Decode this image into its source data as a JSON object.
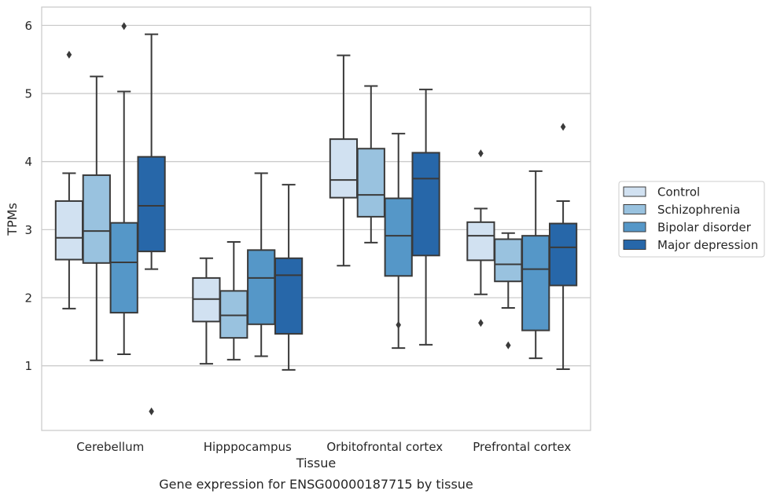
{
  "chart_data": {
    "type": "box",
    "caption": "Gene expression for ENSG00000187715 by tissue",
    "xlabel": "Tissue",
    "ylabel": "TPMs",
    "ylim": [
      0.05,
      6.27
    ],
    "yticks": [
      1,
      2,
      3,
      4,
      5,
      6
    ],
    "grid": "horizontal",
    "legend_position": "right",
    "categories": [
      "Cerebellum",
      "Hipppocampus",
      "Orbitofrontal cortex",
      "Prefrontal cortex"
    ],
    "series": [
      {
        "name": "Control",
        "color": "#d1e1f1",
        "boxes": [
          {
            "whisker_low": 1.84,
            "q1": 2.56,
            "median": 2.88,
            "q3": 3.42,
            "whisker_high": 3.83,
            "outliers": [
              5.57
            ]
          },
          {
            "whisker_low": 1.03,
            "q1": 1.65,
            "median": 1.98,
            "q3": 2.29,
            "whisker_high": 2.58,
            "outliers": []
          },
          {
            "whisker_low": 2.47,
            "q1": 3.47,
            "median": 3.73,
            "q3": 4.33,
            "whisker_high": 5.56,
            "outliers": []
          },
          {
            "whisker_low": 2.05,
            "q1": 2.55,
            "median": 2.91,
            "q3": 3.11,
            "whisker_high": 3.31,
            "outliers": [
              4.12,
              1.63
            ]
          }
        ]
      },
      {
        "name": "Schizophrenia",
        "color": "#99c2df",
        "boxes": [
          {
            "whisker_low": 1.08,
            "q1": 2.51,
            "median": 2.98,
            "q3": 3.8,
            "whisker_high": 5.25,
            "outliers": []
          },
          {
            "whisker_low": 1.09,
            "q1": 1.41,
            "median": 1.74,
            "q3": 2.1,
            "whisker_high": 2.82,
            "outliers": []
          },
          {
            "whisker_low": 2.81,
            "q1": 3.19,
            "median": 3.51,
            "q3": 4.19,
            "whisker_high": 5.11,
            "outliers": []
          },
          {
            "whisker_low": 1.85,
            "q1": 2.24,
            "median": 2.49,
            "q3": 2.86,
            "whisker_high": 2.95,
            "outliers": [
              1.3
            ]
          }
        ]
      },
      {
        "name": "Bipolar disorder",
        "color": "#5597c8",
        "boxes": [
          {
            "whisker_low": 1.17,
            "q1": 1.78,
            "median": 2.52,
            "q3": 3.1,
            "whisker_high": 5.03,
            "outliers": [
              5.99
            ]
          },
          {
            "whisker_low": 1.14,
            "q1": 1.61,
            "median": 2.29,
            "q3": 2.7,
            "whisker_high": 3.83,
            "outliers": []
          },
          {
            "whisker_low": 1.26,
            "q1": 2.32,
            "median": 2.91,
            "q3": 3.46,
            "whisker_high": 4.41,
            "outliers": [
              1.6
            ]
          },
          {
            "whisker_low": 1.11,
            "q1": 1.52,
            "median": 2.42,
            "q3": 2.91,
            "whisker_high": 3.86,
            "outliers": []
          }
        ]
      },
      {
        "name": "Major depression",
        "color": "#2767a9",
        "boxes": [
          {
            "whisker_low": 2.42,
            "q1": 2.68,
            "median": 3.35,
            "q3": 4.07,
            "whisker_high": 5.87,
            "outliers": [
              0.33
            ]
          },
          {
            "whisker_low": 0.94,
            "q1": 1.47,
            "median": 2.33,
            "q3": 2.58,
            "whisker_high": 3.66,
            "outliers": []
          },
          {
            "whisker_low": 1.31,
            "q1": 2.62,
            "median": 3.75,
            "q3": 4.13,
            "whisker_high": 5.06,
            "outliers": []
          },
          {
            "whisker_low": 0.95,
            "q1": 2.18,
            "median": 2.74,
            "q3": 3.09,
            "whisker_high": 3.42,
            "outliers": [
              4.51
            ]
          }
        ]
      }
    ]
  },
  "colors": {
    "box_edge": "#3a3a3a",
    "grid": "#cccccc",
    "frame": "#cccccc",
    "text": "#262626"
  }
}
